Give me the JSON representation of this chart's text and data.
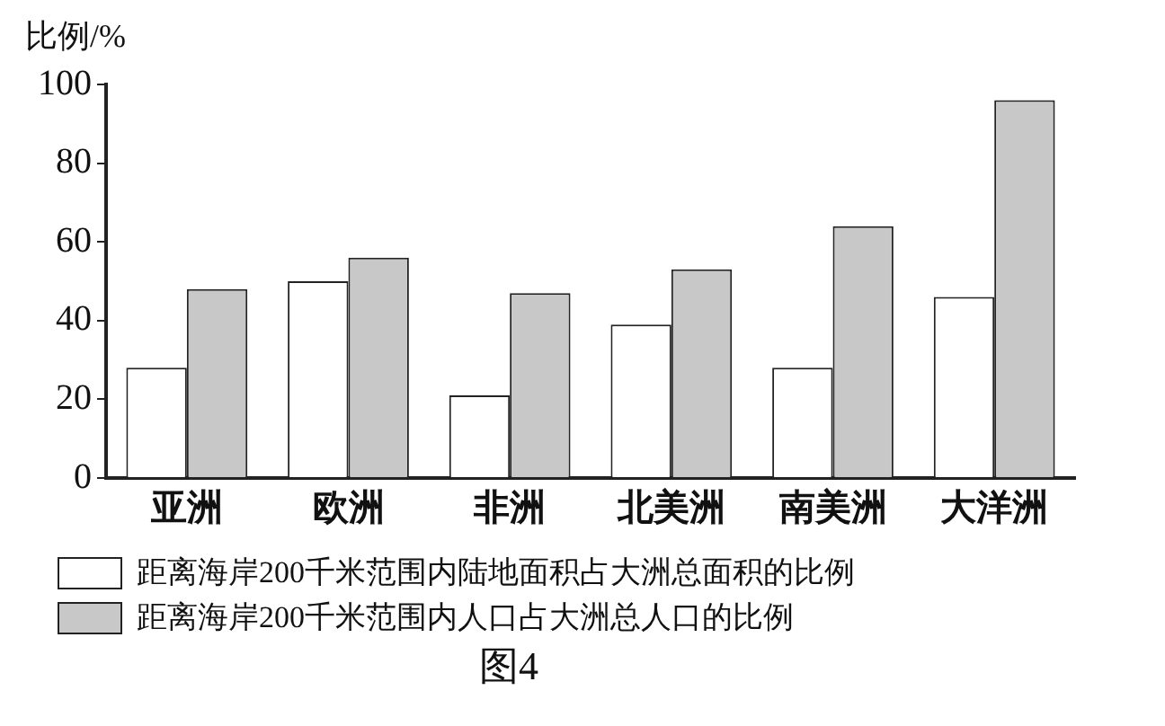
{
  "chart_data": {
    "type": "bar",
    "ylabel": "比例/%",
    "categories": [
      "亚洲",
      "欧洲",
      "非洲",
      "北美洲",
      "南美洲",
      "大洋洲"
    ],
    "series": [
      {
        "name": "距离海岸200千米范围内陆地面积占大洲总面积的比例",
        "color": "#ffffff",
        "values": [
          28,
          50,
          21,
          39,
          28,
          46
        ]
      },
      {
        "name": "距离海岸200千米范围内人口占大洲总人口的比例",
        "color": "#c8c8c8",
        "values": [
          48,
          56,
          47,
          53,
          64,
          96
        ]
      }
    ],
    "ylim": [
      0,
      100
    ],
    "yticks": [
      0,
      20,
      40,
      60,
      80,
      100
    ],
    "grid": false,
    "legend": "bottom",
    "annotations": [
      "图4"
    ]
  }
}
